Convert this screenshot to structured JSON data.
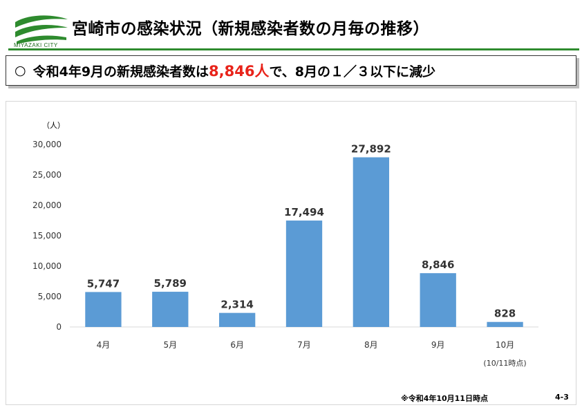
{
  "header": {
    "logo_text": "MIYAZAKI CITY",
    "title": "宮崎市の感染状況（新規感染者数の月毎の推移）"
  },
  "summary": {
    "bullet": "○",
    "text_before": "令和4年9月の新規感染者数は",
    "highlight": "8,846人",
    "text_after": "で、8月の１／３以下に減少",
    "highlight_color": "#e8231a"
  },
  "chart_data": {
    "type": "bar",
    "ylabel": "（人）",
    "ylim": [
      0,
      30000
    ],
    "yticks": [
      0,
      5000,
      10000,
      15000,
      20000,
      25000,
      30000
    ],
    "ytick_labels": [
      "0",
      "5,000",
      "10,000",
      "15,000",
      "20,000",
      "25,000",
      "30,000"
    ],
    "categories": [
      "4月",
      "5月",
      "6月",
      "7月",
      "8月",
      "9月",
      "10月"
    ],
    "category_notes": [
      "",
      "",
      "",
      "",
      "",
      "",
      "(10/11時点)"
    ],
    "values": [
      5747,
      5789,
      2314,
      17494,
      27892,
      8846,
      828
    ],
    "value_labels": [
      "5,747",
      "5,789",
      "2,314",
      "17,494",
      "27,892",
      "8,846",
      "828"
    ],
    "bar_color": "#5b9bd5",
    "grid": false,
    "legend": "none"
  },
  "footer": {
    "note": "※令和4年10月11日時点",
    "page": "4-3"
  }
}
